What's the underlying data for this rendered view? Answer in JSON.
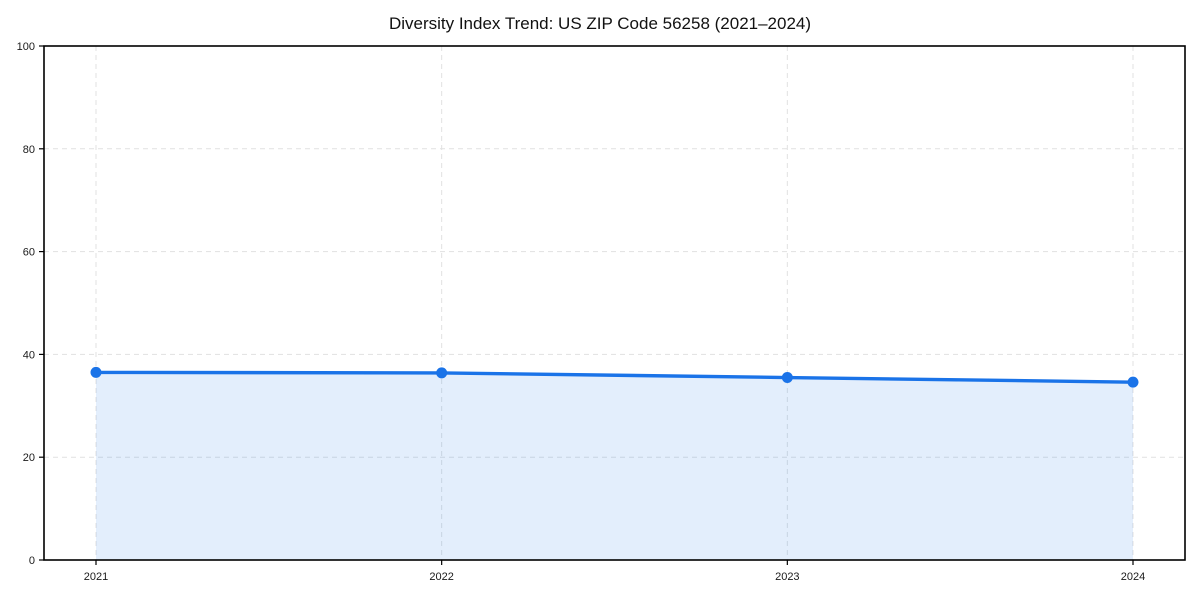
{
  "chart_data": {
    "type": "area",
    "title": "Diversity Index Trend: US ZIP Code 56258 (2021–2024)",
    "x": [
      "2021",
      "2022",
      "2023",
      "2024"
    ],
    "values": [
      36.5,
      36.4,
      35.5,
      34.6
    ],
    "series_name": "Diversity Index",
    "xlabel": "",
    "ylabel": "",
    "ylim": [
      0,
      100
    ],
    "yticks": [
      0,
      20,
      40,
      60,
      80,
      100
    ],
    "grid": "dashed, both axes",
    "legend": "none",
    "colors": {
      "line": "#1a73e8",
      "fill": "#1a73e8",
      "fill_opacity": 0.12,
      "grid": "#e1e1e1",
      "axis": "#000000",
      "background": "#ffffff",
      "text": "#111111"
    }
  }
}
